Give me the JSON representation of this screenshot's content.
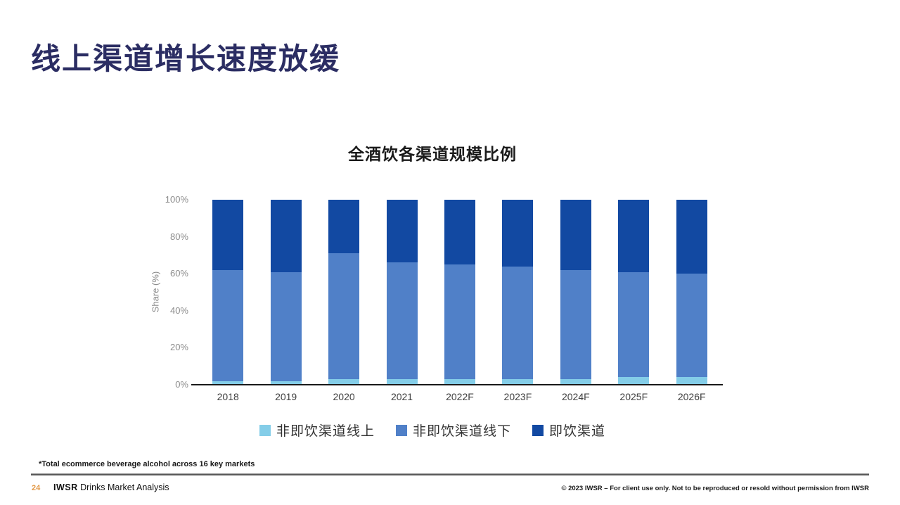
{
  "slide": {
    "title": "线上渠道增长速度放缓",
    "footnote": "*Total ecommerce beverage alcohol across 16 key markets",
    "footer": {
      "page_number": "24",
      "brand_bold": "IWSR",
      "brand_rest": "Drinks Market Analysis",
      "copyright": "© 2023 IWSR – For client use only. Not to be reproduced or resold without permission from IWSR"
    },
    "colors": {
      "title_navy": "#2b2d63",
      "page_number_orange": "#e39a49",
      "axis_text_gray": "#8c8c8c",
      "axis_line_black": "#1a1a1a"
    }
  },
  "chart_data": {
    "type": "bar",
    "stacked": true,
    "title": "全酒饮各渠道规模比例",
    "xlabel": "",
    "ylabel": "Share (%)",
    "ylim": [
      0,
      100
    ],
    "yticks": [
      0,
      20,
      40,
      60,
      80,
      100
    ],
    "ytick_labels": [
      "0%",
      "20%",
      "40%",
      "60%",
      "80%",
      "100%"
    ],
    "grid": false,
    "legend_position": "bottom",
    "categories": [
      "2018",
      "2019",
      "2020",
      "2021",
      "2022F",
      "2023F",
      "2024F",
      "2025F",
      "2026F"
    ],
    "series": [
      {
        "name": "非即饮渠道线上",
        "color": "#84cde8",
        "values": [
          2,
          2,
          3,
          3,
          3,
          3,
          3,
          4,
          4
        ]
      },
      {
        "name": "非即饮渠道线下",
        "color": "#5080c8",
        "values": [
          60,
          59,
          68,
          63,
          62,
          61,
          59,
          57,
          56
        ]
      },
      {
        "name": "即饮渠道",
        "color": "#1249a2",
        "values": [
          38,
          39,
          29,
          34,
          35,
          36,
          38,
          39,
          40
        ]
      }
    ]
  }
}
